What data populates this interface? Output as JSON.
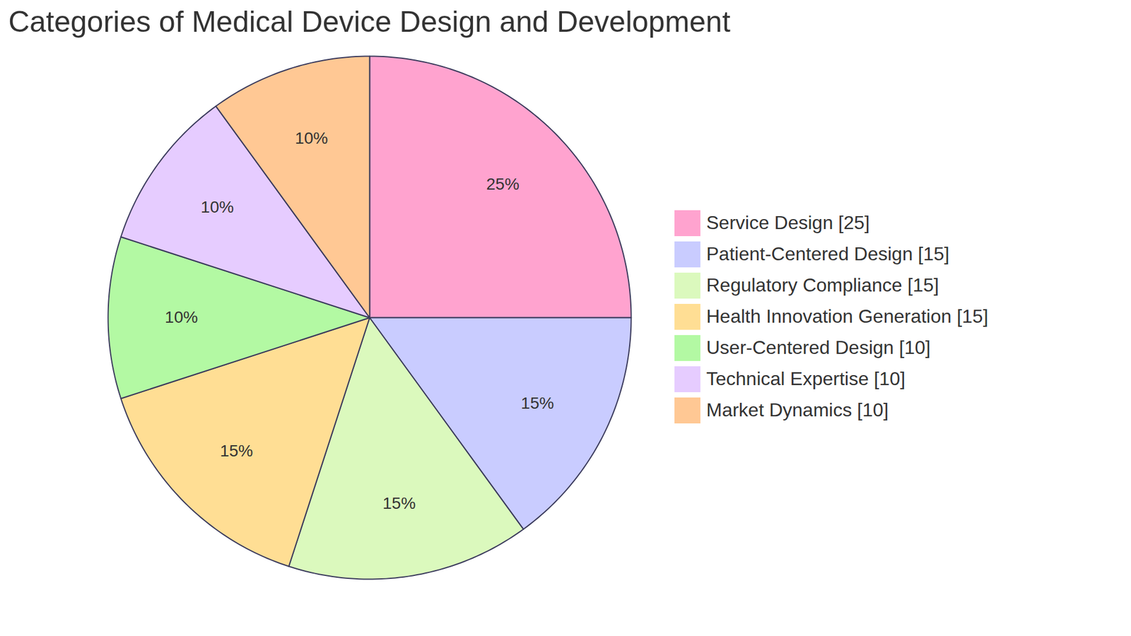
{
  "chart_data": {
    "type": "pie",
    "title": "Categories of Medical Device Design and Development",
    "categories": [
      "Service Design [25]",
      "Patient-Centered Design [15]",
      "Regulatory Compliance [15]",
      "Health Innovation Generation [15]",
      "User-Centered Design [10]",
      "Technical Expertise [10]",
      "Market Dynamics [10]"
    ],
    "values": [
      25,
      15,
      15,
      15,
      10,
      10,
      10
    ],
    "value_labels": [
      "25%",
      "15%",
      "15%",
      "15%",
      "10%",
      "10%",
      "10%"
    ],
    "colors": [
      "#ffa3cf",
      "#c9ccff",
      "#dbf9bd",
      "#ffde94",
      "#b3f9a3",
      "#e6ccff",
      "#ffc894"
    ],
    "data_labels": true,
    "legend": "right"
  }
}
